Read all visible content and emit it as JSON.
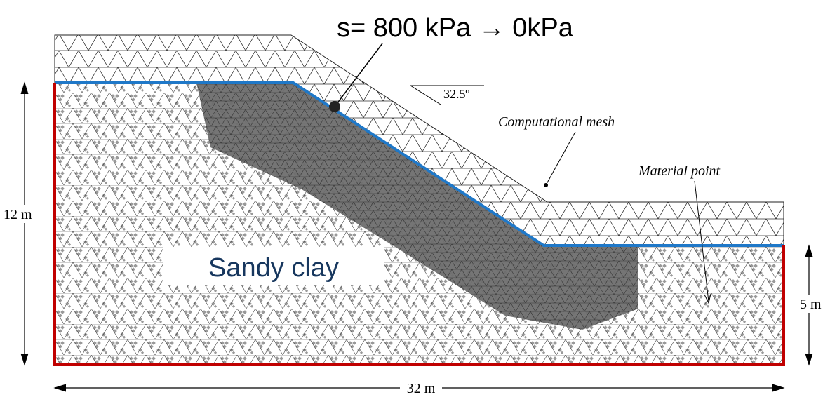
{
  "load_label": "s= 800 kPa → 0kPa",
  "slope_angle": "32.5º",
  "annotations": {
    "mesh": "Computational mesh",
    "point": "Material point"
  },
  "dimensions": {
    "height_left": "12 m",
    "height_right": "5 m",
    "width": "32 m"
  },
  "material": "Sandy clay"
}
